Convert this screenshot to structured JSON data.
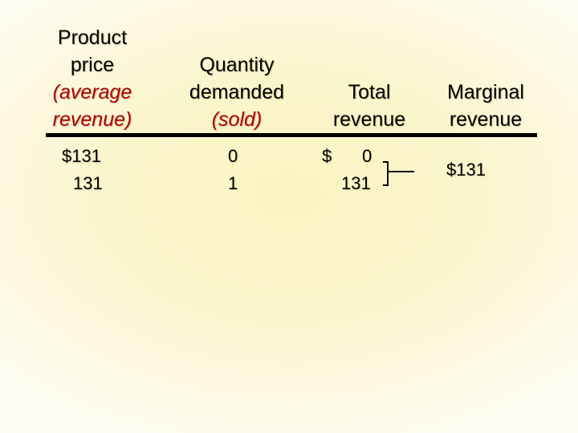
{
  "headers": {
    "price": {
      "line1": "Product",
      "line2": "price",
      "line3": "(average",
      "line4": "revenue)"
    },
    "quantity": {
      "line1": "Quantity",
      "line2": "demanded",
      "line3": "(sold)"
    },
    "total": {
      "line1": "Total",
      "line2": "revenue"
    },
    "marginal": {
      "line1": "Marginal",
      "line2": "revenue"
    }
  },
  "rows": [
    {
      "price": "$131",
      "quantity": "0",
      "total": "0"
    },
    {
      "price": "131",
      "quantity": "1",
      "total": "131"
    }
  ],
  "total_currency": "$",
  "marginal_value": "$131",
  "colors": {
    "accent_italic": "#b00000",
    "background": "#fbf5cc"
  }
}
